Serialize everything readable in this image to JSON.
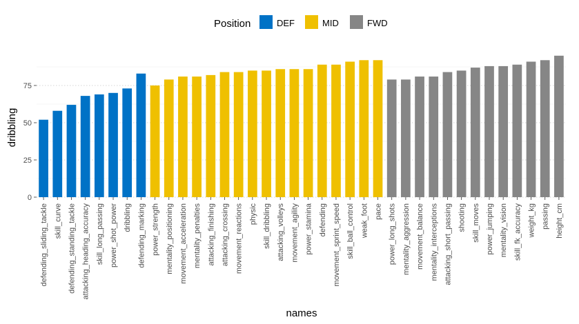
{
  "chart_data": {
    "type": "bar",
    "xlabel": "names",
    "ylabel": "dribbling",
    "ylim": [
      0,
      100
    ],
    "yticks": [
      0,
      25,
      50,
      75
    ],
    "grid": true,
    "legend": {
      "title": "Position",
      "placement": "top",
      "entries": [
        {
          "name": "DEF",
          "color": "#0072C6"
        },
        {
          "name": "MID",
          "color": "#EFC000"
        },
        {
          "name": "FWD",
          "color": "#868686"
        }
      ]
    },
    "bars": [
      {
        "name": "defending_sliding_tackle",
        "value": 52,
        "group": "DEF"
      },
      {
        "name": "skill_curve",
        "value": 58,
        "group": "DEF"
      },
      {
        "name": "defending_standing_tackle",
        "value": 62,
        "group": "DEF"
      },
      {
        "name": "attacking_heading_accuracy",
        "value": 68,
        "group": "DEF"
      },
      {
        "name": "skill_long_passing",
        "value": 69,
        "group": "DEF"
      },
      {
        "name": "power_shot_power",
        "value": 70,
        "group": "DEF"
      },
      {
        "name": "dribbling",
        "value": 73,
        "group": "DEF"
      },
      {
        "name": "defending_marking",
        "value": 83,
        "group": "DEF"
      },
      {
        "name": "power_strength",
        "value": 75,
        "group": "MID"
      },
      {
        "name": "mentality_positioning",
        "value": 79,
        "group": "MID"
      },
      {
        "name": "movement_acceleration",
        "value": 81,
        "group": "MID"
      },
      {
        "name": "mentality_penalties",
        "value": 81,
        "group": "MID"
      },
      {
        "name": "attacking_finishing",
        "value": 82,
        "group": "MID"
      },
      {
        "name": "attacking_crossing",
        "value": 84,
        "group": "MID"
      },
      {
        "name": "movement_reactions",
        "value": 84,
        "group": "MID"
      },
      {
        "name": "physic",
        "value": 85,
        "group": "MID"
      },
      {
        "name": "skill_dribbling",
        "value": 85,
        "group": "MID"
      },
      {
        "name": "attacking_volleys",
        "value": 86,
        "group": "MID"
      },
      {
        "name": "movement_agility",
        "value": 86,
        "group": "MID"
      },
      {
        "name": "power_stamina",
        "value": 86,
        "group": "MID"
      },
      {
        "name": "defending",
        "value": 89,
        "group": "MID"
      },
      {
        "name": "movement_sprint_speed",
        "value": 89,
        "group": "MID"
      },
      {
        "name": "skill_ball_control",
        "value": 91,
        "group": "MID"
      },
      {
        "name": "weak_foot",
        "value": 92,
        "group": "MID"
      },
      {
        "name": "pace",
        "value": 92,
        "group": "MID"
      },
      {
        "name": "power_long_shots",
        "value": 79,
        "group": "FWD"
      },
      {
        "name": "mentality_aggression",
        "value": 79,
        "group": "FWD"
      },
      {
        "name": "movement_balance",
        "value": 81,
        "group": "FWD"
      },
      {
        "name": "mentality_interceptions",
        "value": 81,
        "group": "FWD"
      },
      {
        "name": "attacking_short_passing",
        "value": 84,
        "group": "FWD"
      },
      {
        "name": "shooting",
        "value": 85,
        "group": "FWD"
      },
      {
        "name": "skill_moves",
        "value": 87,
        "group": "FWD"
      },
      {
        "name": "power_jumping",
        "value": 88,
        "group": "FWD"
      },
      {
        "name": "mentality_vision",
        "value": 88,
        "group": "FWD"
      },
      {
        "name": "skill_fk_accuracy",
        "value": 89,
        "group": "FWD"
      },
      {
        "name": "weight_kg",
        "value": 91,
        "group": "FWD"
      },
      {
        "name": "passing",
        "value": 92,
        "group": "FWD"
      },
      {
        "name": "height_cm",
        "value": 95,
        "group": "FWD"
      }
    ]
  }
}
